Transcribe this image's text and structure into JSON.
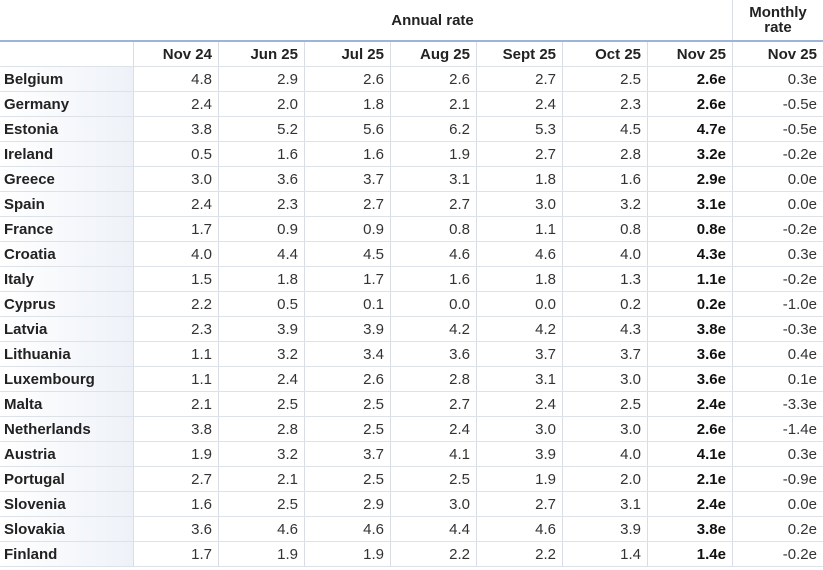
{
  "table": {
    "group_headers": [
      "Annual rate",
      "Monthly rate"
    ],
    "columns": [
      "Nov 24",
      "Jun 25",
      "Jul 25",
      "Aug 25",
      "Sept 25",
      "Oct 25",
      "Nov 25",
      "Nov 25"
    ],
    "rows": [
      [
        "Belgium",
        "4.8",
        "2.9",
        "2.6",
        "2.6",
        "2.7",
        "2.5",
        "2.6e",
        "0.3e"
      ],
      [
        "Germany",
        "2.4",
        "2.0",
        "1.8",
        "2.1",
        "2.4",
        "2.3",
        "2.6e",
        "-0.5e"
      ],
      [
        "Estonia",
        "3.8",
        "5.2",
        "5.6",
        "6.2",
        "5.3",
        "4.5",
        "4.7e",
        "-0.5e"
      ],
      [
        "Ireland",
        "0.5",
        "1.6",
        "1.6",
        "1.9",
        "2.7",
        "2.8",
        "3.2e",
        "-0.2e"
      ],
      [
        "Greece",
        "3.0",
        "3.6",
        "3.7",
        "3.1",
        "1.8",
        "1.6",
        "2.9e",
        "0.0e"
      ],
      [
        "Spain",
        "2.4",
        "2.3",
        "2.7",
        "2.7",
        "3.0",
        "3.2",
        "3.1e",
        "0.0e"
      ],
      [
        "France",
        "1.7",
        "0.9",
        "0.9",
        "0.8",
        "1.1",
        "0.8",
        "0.8e",
        "-0.2e"
      ],
      [
        "Croatia",
        "4.0",
        "4.4",
        "4.5",
        "4.6",
        "4.6",
        "4.0",
        "4.3e",
        "0.3e"
      ],
      [
        "Italy",
        "1.5",
        "1.8",
        "1.7",
        "1.6",
        "1.8",
        "1.3",
        "1.1e",
        "-0.2e"
      ],
      [
        "Cyprus",
        "2.2",
        "0.5",
        "0.1",
        "0.0",
        "0.0",
        "0.2",
        "0.2e",
        "-1.0e"
      ],
      [
        "Latvia",
        "2.3",
        "3.9",
        "3.9",
        "4.2",
        "4.2",
        "4.3",
        "3.8e",
        "-0.3e"
      ],
      [
        "Lithuania",
        "1.1",
        "3.2",
        "3.4",
        "3.6",
        "3.7",
        "3.7",
        "3.6e",
        "0.4e"
      ],
      [
        "Luxembourg",
        "1.1",
        "2.4",
        "2.6",
        "2.8",
        "3.1",
        "3.0",
        "3.6e",
        "0.1e"
      ],
      [
        "Malta",
        "2.1",
        "2.5",
        "2.5",
        "2.7",
        "2.4",
        "2.5",
        "2.4e",
        "-3.3e"
      ],
      [
        "Netherlands",
        "3.8",
        "2.8",
        "2.5",
        "2.4",
        "3.0",
        "3.0",
        "2.6e",
        "-1.4e"
      ],
      [
        "Austria",
        "1.9",
        "3.2",
        "3.7",
        "4.1",
        "3.9",
        "4.0",
        "4.1e",
        "0.3e"
      ],
      [
        "Portugal",
        "2.7",
        "2.1",
        "2.5",
        "2.5",
        "1.9",
        "2.0",
        "2.1e",
        "-0.9e"
      ],
      [
        "Slovenia",
        "1.6",
        "2.5",
        "2.9",
        "3.0",
        "2.7",
        "3.1",
        "2.4e",
        "0.0e"
      ],
      [
        "Slovakia",
        "3.6",
        "4.6",
        "4.6",
        "4.4",
        "4.6",
        "3.9",
        "3.8e",
        "0.2e"
      ],
      [
        "Finland",
        "1.7",
        "1.9",
        "1.9",
        "2.2",
        "2.2",
        "1.4",
        "1.4e",
        "-0.2e"
      ]
    ]
  }
}
